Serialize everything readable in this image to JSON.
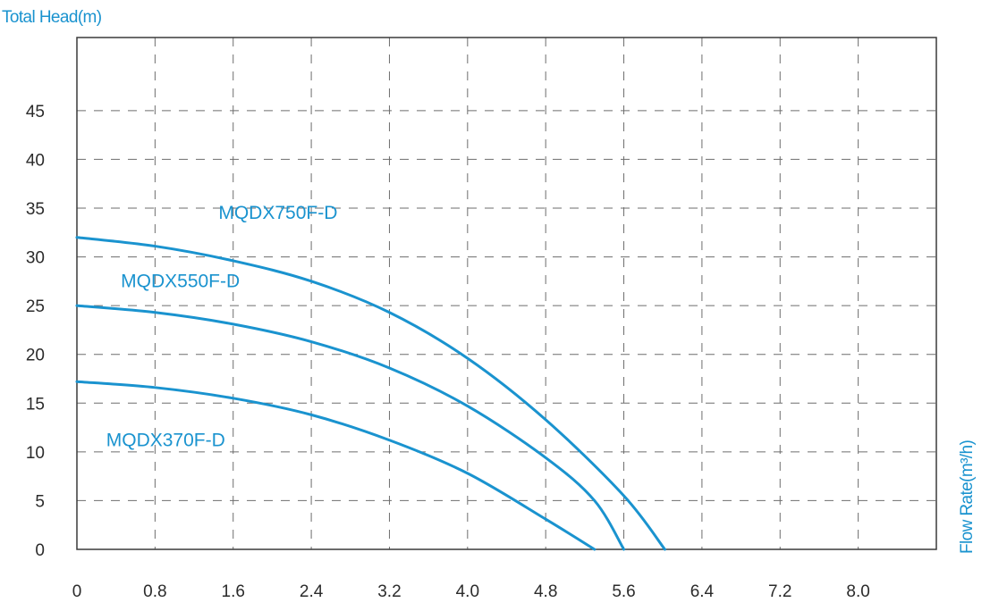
{
  "chart_data": {
    "type": "line",
    "title": "",
    "ylabel": "Total Head(m)",
    "xlabel": "Flow Rate(m³/h)",
    "xlim": [
      0,
      8.8
    ],
    "ylim": [
      0,
      52.5
    ],
    "x_ticks": [
      "0",
      "0.8",
      "1.6",
      "2.4",
      "3.2",
      "4.0",
      "4.8",
      "5.6",
      "6.4",
      "7.2",
      "8.0"
    ],
    "y_ticks": [
      "0",
      "5",
      "10",
      "15",
      "20",
      "25",
      "30",
      "35",
      "40",
      "45"
    ],
    "grid": true,
    "legend": "none",
    "line_color": "#1a93cf",
    "series": [
      {
        "name": "MQDX750F-D",
        "points": [
          [
            0,
            32
          ],
          [
            0.8,
            31.1
          ],
          [
            1.6,
            29.6
          ],
          [
            2.4,
            27.5
          ],
          [
            3.2,
            24.3
          ],
          [
            4.0,
            19.6
          ],
          [
            4.8,
            13.3
          ],
          [
            5.6,
            5.5
          ],
          [
            6.02,
            0
          ]
        ]
      },
      {
        "name": "MQDX550F-D",
        "points": [
          [
            0,
            25
          ],
          [
            0.8,
            24.3
          ],
          [
            1.6,
            23.1
          ],
          [
            2.4,
            21.3
          ],
          [
            3.2,
            18.6
          ],
          [
            4.0,
            14.7
          ],
          [
            4.8,
            9.4
          ],
          [
            5.3,
            5.0
          ],
          [
            5.6,
            0
          ]
        ]
      },
      {
        "name": "MQDX370F-D",
        "points": [
          [
            0,
            17.2
          ],
          [
            0.8,
            16.6
          ],
          [
            1.6,
            15.5
          ],
          [
            2.4,
            13.8
          ],
          [
            3.2,
            11.2
          ],
          [
            4.0,
            7.8
          ],
          [
            4.8,
            3.1
          ],
          [
            5.3,
            0
          ]
        ]
      }
    ]
  }
}
